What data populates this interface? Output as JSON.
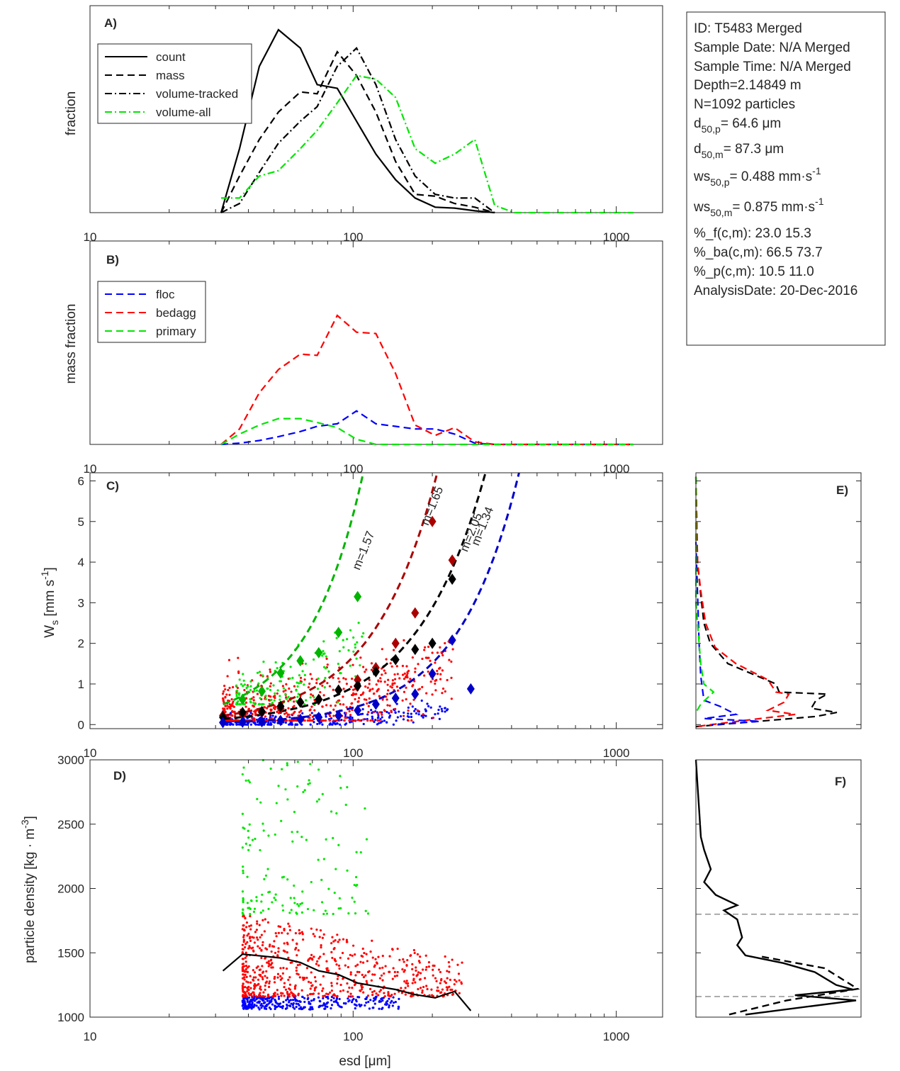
{
  "chart_data": [
    {
      "id": "A",
      "type": "line",
      "panel_label": "A)",
      "xlabel": "",
      "ylabel": "fraction",
      "xscale": "log",
      "xlim": [
        10,
        1500
      ],
      "xticks": [
        "10",
        "100",
        "1000"
      ],
      "legend": [
        "count",
        "mass",
        "volume-tracked",
        "volume-all"
      ],
      "series": [
        {
          "name": "count",
          "style": "solid",
          "color": "#000000",
          "x": [
            31.5,
            37,
            44,
            52,
            63,
            73,
            87,
            103,
            122,
            145,
            172,
            205,
            243,
            290,
            345
          ],
          "y": [
            0,
            0.35,
            0.8,
            1.0,
            0.9,
            0.7,
            0.68,
            0.5,
            0.32,
            0.18,
            0.08,
            0.03,
            0.025,
            0.01,
            0
          ]
        },
        {
          "name": "mass",
          "style": "dashed",
          "color": "#000000",
          "x": [
            31.5,
            37,
            44,
            52,
            63,
            73,
            87,
            103,
            122,
            145,
            172,
            205,
            243,
            290,
            345
          ],
          "y": [
            0,
            0.2,
            0.4,
            0.55,
            0.66,
            0.65,
            0.88,
            0.75,
            0.55,
            0.28,
            0.1,
            0.09,
            0.05,
            0.03,
            0
          ]
        },
        {
          "name": "volume-tracked",
          "style": "dashdot",
          "color": "#000000",
          "x": [
            31.5,
            37,
            44,
            52,
            63,
            73,
            87,
            103,
            122,
            145,
            172,
            205,
            243,
            290,
            345
          ],
          "y": [
            0,
            0.05,
            0.22,
            0.38,
            0.5,
            0.58,
            0.8,
            0.9,
            0.7,
            0.4,
            0.2,
            0.1,
            0.08,
            0.08,
            0
          ]
        },
        {
          "name": "volume-all",
          "style": "dashdot",
          "color": "#00e600",
          "x": [
            31.5,
            37,
            44,
            52,
            63,
            73,
            87,
            103,
            122,
            145,
            172,
            205,
            243,
            290,
            345,
            410,
            488,
            580,
            690,
            820,
            975,
            1160
          ],
          "y": [
            0.08,
            0.08,
            0.2,
            0.23,
            0.35,
            0.45,
            0.6,
            0.75,
            0.73,
            0.63,
            0.35,
            0.27,
            0.32,
            0.4,
            0.04,
            0,
            0,
            0,
            0,
            0,
            0,
            0
          ]
        }
      ]
    },
    {
      "id": "B",
      "type": "line",
      "panel_label": "B)",
      "xlabel": "",
      "ylabel": "mass fraction",
      "xscale": "log",
      "xlim": [
        10,
        1500
      ],
      "xticks": [
        "10",
        "100",
        "1000"
      ],
      "legend": [
        "floc",
        "bedagg",
        "primary"
      ],
      "series": [
        {
          "name": "floc",
          "style": "dashed",
          "color": "#0000ff",
          "x": [
            31.5,
            37,
            44,
            52,
            63,
            73,
            87,
            103,
            122,
            145,
            172,
            205,
            243,
            290,
            345,
            410,
            488,
            580,
            690,
            820,
            975,
            1160
          ],
          "y": [
            0,
            0.01,
            0.03,
            0.06,
            0.1,
            0.14,
            0.16,
            0.26,
            0.16,
            0.14,
            0.12,
            0.12,
            0.08,
            0.01,
            0,
            0,
            0,
            0,
            0,
            0,
            0,
            0
          ]
        },
        {
          "name": "bedagg",
          "style": "dashed",
          "color": "#ff0000",
          "x": [
            31.5,
            37,
            44,
            52,
            63,
            73,
            87,
            103,
            122,
            145,
            172,
            205,
            243,
            290,
            345,
            410,
            488,
            580,
            690,
            820,
            975,
            1160
          ],
          "y": [
            0,
            0.12,
            0.4,
            0.58,
            0.7,
            0.69,
            1.0,
            0.87,
            0.86,
            0.55,
            0.15,
            0.07,
            0.13,
            0.02,
            0,
            0,
            0,
            0,
            0,
            0,
            0,
            0
          ]
        },
        {
          "name": "primary",
          "style": "dashed",
          "color": "#00e600",
          "x": [
            31.5,
            37,
            44,
            52,
            63,
            73,
            87,
            103,
            122,
            145,
            172,
            205,
            243,
            290,
            345,
            410,
            488,
            580,
            690,
            820,
            975,
            1160
          ],
          "y": [
            0,
            0.08,
            0.15,
            0.2,
            0.2,
            0.17,
            0.13,
            0.04,
            0,
            0,
            0,
            0,
            0,
            0,
            0,
            0,
            0,
            0,
            0,
            0,
            0,
            0
          ]
        }
      ]
    },
    {
      "id": "C",
      "type": "scatter",
      "panel_label": "C)",
      "xlabel": "",
      "ylabel": "W_s [mm s^-1]",
      "xscale": "log",
      "xlim": [
        10,
        1500
      ],
      "ylim": [
        -0.1,
        6.2
      ],
      "xticks": [
        "10",
        "100",
        "1000"
      ],
      "yticks": [
        "0",
        "1",
        "2",
        "3",
        "4",
        "5",
        "6"
      ],
      "curves": [
        {
          "name": "m=1.57",
          "color": "#00b400",
          "x0": 32,
          "x1": 230,
          "y0": 0.5,
          "k": 2.05,
          "label": "m=1.57",
          "label_x": 113,
          "label_y": 4.25
        },
        {
          "name": "m=1.65",
          "color": "#aa0000",
          "x0": 32,
          "x1": 460,
          "y0": 0.22,
          "k": 1.78,
          "label": "m=1.65",
          "label_x": 206,
          "label_y": 5.35
        },
        {
          "name": "m=2.05",
          "color": "#000000",
          "x0": 32,
          "x1": 500,
          "y0": 0.14,
          "k": 1.65,
          "label": "m=2.05",
          "label_x": 290,
          "label_y": 4.7
        },
        {
          "name": "m=1.34",
          "color": "#0000c8",
          "x0": 32,
          "x1": 520,
          "y0": 0.05,
          "k": 1.86,
          "label": "m=1.34",
          "label_x": 320,
          "label_y": 4.85
        }
      ],
      "diamonds": [
        {
          "color": "#00b400",
          "x": [
            38,
            45,
            53,
            63,
            74,
            88,
            104
          ],
          "y": [
            0.62,
            0.82,
            1.27,
            1.57,
            1.77,
            2.27,
            3.15
          ]
        },
        {
          "color": "#aa0000",
          "x": [
            32,
            38,
            45,
            53,
            63,
            74,
            88,
            104,
            122,
            145,
            172,
            200,
            238
          ],
          "y": [
            0.22,
            0.25,
            0.3,
            0.4,
            0.55,
            0.62,
            0.85,
            1.1,
            1.4,
            2.0,
            2.75,
            5.0,
            4.05
          ]
        },
        {
          "color": "#000000",
          "x": [
            32,
            38,
            45,
            53,
            63,
            74,
            88,
            104,
            122,
            145,
            172,
            200,
            238
          ],
          "y": [
            0.18,
            0.3,
            0.32,
            0.45,
            0.55,
            0.62,
            0.85,
            0.95,
            1.3,
            1.6,
            1.85,
            2.0,
            3.58
          ]
        },
        {
          "color": "#0000c8",
          "x": [
            32,
            38,
            45,
            53,
            63,
            74,
            88,
            104,
            122,
            145,
            172,
            200,
            238,
            280
          ],
          "y": [
            0.05,
            0.06,
            0.07,
            0.1,
            0.13,
            0.18,
            0.22,
            0.35,
            0.5,
            0.65,
            0.75,
            1.25,
            2.08,
            0.88
          ]
        }
      ],
      "scatter": {
        "floc": {
          "color": "#0000ff",
          "xmin": 32,
          "xmax": 230,
          "n": 300,
          "ymin": 0.0,
          "ymax": 0.6
        },
        "bedagg": {
          "color": "#ff0000",
          "xmin": 32,
          "xmax": 240,
          "n": 600,
          "ymin": 0.1,
          "ymax": 2.2
        },
        "primary": {
          "color": "#00e600",
          "xmin": 36,
          "xmax": 110,
          "n": 150,
          "ymin": 0.5,
          "ymax": 2.4
        }
      }
    },
    {
      "id": "D",
      "type": "scatter",
      "panel_label": "D)",
      "xlabel": "esd [μm]",
      "ylabel": "particle density [kg · m^-3]",
      "xscale": "log",
      "xlim": [
        10,
        1500
      ],
      "ylim": [
        1000,
        3000
      ],
      "xticks": [
        "10",
        "100",
        "1000"
      ],
      "yticks": [
        "1000",
        "1500",
        "2000",
        "2500",
        "3000"
      ],
      "mean_line": {
        "x": [
          32,
          38,
          45,
          53,
          63,
          74,
          88,
          104,
          122,
          145,
          172,
          205,
          243,
          280
        ],
        "y": [
          1360,
          1490,
          1475,
          1460,
          1425,
          1360,
          1330,
          1265,
          1240,
          1215,
          1175,
          1150,
          1200,
          1050
        ]
      },
      "scatter": {
        "floc": {
          "color": "#0000ff",
          "ymin": 1060,
          "ymax": 1160,
          "xmin": 38,
          "xmax": 150,
          "n": 320
        },
        "bedagg": {
          "color": "#ff0000",
          "ymin": 1160,
          "ymax": 1800,
          "xmin": 38,
          "xmax": 260,
          "n": 650
        },
        "primary": {
          "color": "#00e600",
          "ymin": 1800,
          "ymax": 3000,
          "xmin": 38,
          "xmax": 115,
          "n": 150
        }
      }
    },
    {
      "id": "E",
      "type": "line",
      "panel_label": "E)",
      "ylim": [
        -0.1,
        6.2
      ],
      "series": [
        {
          "color": "#000000",
          "pts": [
            [
              0.0,
              6.1
            ],
            [
              0.01,
              4.0
            ],
            [
              0.03,
              3.2
            ],
            [
              0.05,
              2.5
            ],
            [
              0.09,
              2.0
            ],
            [
              0.2,
              1.5
            ],
            [
              0.5,
              1.0
            ],
            [
              0.52,
              0.8
            ],
            [
              0.82,
              0.75
            ],
            [
              0.75,
              0.6
            ],
            [
              0.72,
              0.4
            ],
            [
              0.88,
              0.3
            ],
            [
              0.75,
              0.2
            ],
            [
              0.3,
              0.05
            ],
            [
              0.0,
              -0.05
            ]
          ]
        },
        {
          "color": "#ff0000",
          "pts": [
            [
              0.0,
              6.1
            ],
            [
              0.01,
              4.0
            ],
            [
              0.03,
              3.3
            ],
            [
              0.06,
              2.5
            ],
            [
              0.12,
              1.9
            ],
            [
              0.25,
              1.5
            ],
            [
              0.45,
              1.1
            ],
            [
              0.5,
              0.8
            ],
            [
              0.58,
              0.75
            ],
            [
              0.55,
              0.55
            ],
            [
              0.45,
              0.35
            ],
            [
              0.62,
              0.25
            ],
            [
              0.3,
              0.1
            ],
            [
              0.0,
              -0.05
            ]
          ]
        },
        {
          "color": "#0000ff",
          "pts": [
            [
              0.0,
              4.5
            ],
            [
              0.02,
              2.0
            ],
            [
              0.03,
              1.2
            ],
            [
              0.05,
              0.6
            ],
            [
              0.15,
              0.45
            ],
            [
              0.25,
              0.25
            ],
            [
              0.05,
              0.15
            ],
            [
              0.4,
              0.08
            ],
            [
              0.1,
              0.0
            ]
          ]
        },
        {
          "color": "#00e600",
          "pts": [
            [
              0.0,
              6.1
            ],
            [
              0.0,
              3.0
            ],
            [
              0.03,
              1.5
            ],
            [
              0.05,
              1.0
            ],
            [
              0.11,
              0.8
            ],
            [
              0.03,
              0.5
            ],
            [
              0.0,
              0.3
            ]
          ]
        }
      ]
    },
    {
      "id": "F",
      "type": "line",
      "panel_label": "F)",
      "ylim": [
        1000,
        3000
      ],
      "hlines": [
        1800,
        1160
      ],
      "series": [
        {
          "color": "#000000",
          "style": "solid",
          "pts": [
            [
              0.0,
              3000
            ],
            [
              0.01,
              2800
            ],
            [
              0.02,
              2600
            ],
            [
              0.03,
              2400
            ],
            [
              0.05,
              2300
            ],
            [
              0.09,
              2150
            ],
            [
              0.05,
              2050
            ],
            [
              0.12,
              1950
            ],
            [
              0.25,
              1870
            ],
            [
              0.17,
              1830
            ],
            [
              0.25,
              1760
            ],
            [
              0.28,
              1620
            ],
            [
              0.25,
              1560
            ],
            [
              0.3,
              1480
            ],
            [
              0.53,
              1420
            ],
            [
              0.72,
              1350
            ],
            [
              0.85,
              1250
            ],
            [
              0.95,
              1215
            ],
            [
              0.6,
              1170
            ],
            [
              0.97,
              1130
            ],
            [
              0.3,
              1020
            ]
          ]
        },
        {
          "color": "#000000",
          "style": "dashed",
          "pts": [
            [
              0.4,
              1470
            ],
            [
              0.78,
              1380
            ],
            [
              0.98,
              1220
            ],
            [
              0.55,
              1130
            ],
            [
              0.2,
              1020
            ]
          ]
        }
      ]
    }
  ],
  "info": {
    "id": "ID: T5483 Merged",
    "date": "Sample Date: N/A Merged",
    "time": "Sample Time: N/A Merged",
    "depth": "Depth=2.14849 m",
    "n": "N=1092 particles",
    "d50p": {
      "main": "d",
      "sub": "50,p",
      "rest": "=  64.6 μm"
    },
    "d50m": {
      "main": "d",
      "sub": "50,m",
      "rest": "=  87.3 μm"
    },
    "ws50p": {
      "main": "ws",
      "sub": "50,p",
      "rest": "= 0.488 mm·s",
      "sup": "-1"
    },
    "ws50m": {
      "main": "ws",
      "sub": "50,m",
      "rest": "= 0.875 mm·s",
      "sup": "-1"
    },
    "pf": "%_f(c,m): 23.0 15.3",
    "pba": "%_ba(c,m): 66.5 73.7",
    "pp": "%_p(c,m): 10.5 11.0",
    "analysis": "AnalysisDate: 20-Dec-2016"
  }
}
